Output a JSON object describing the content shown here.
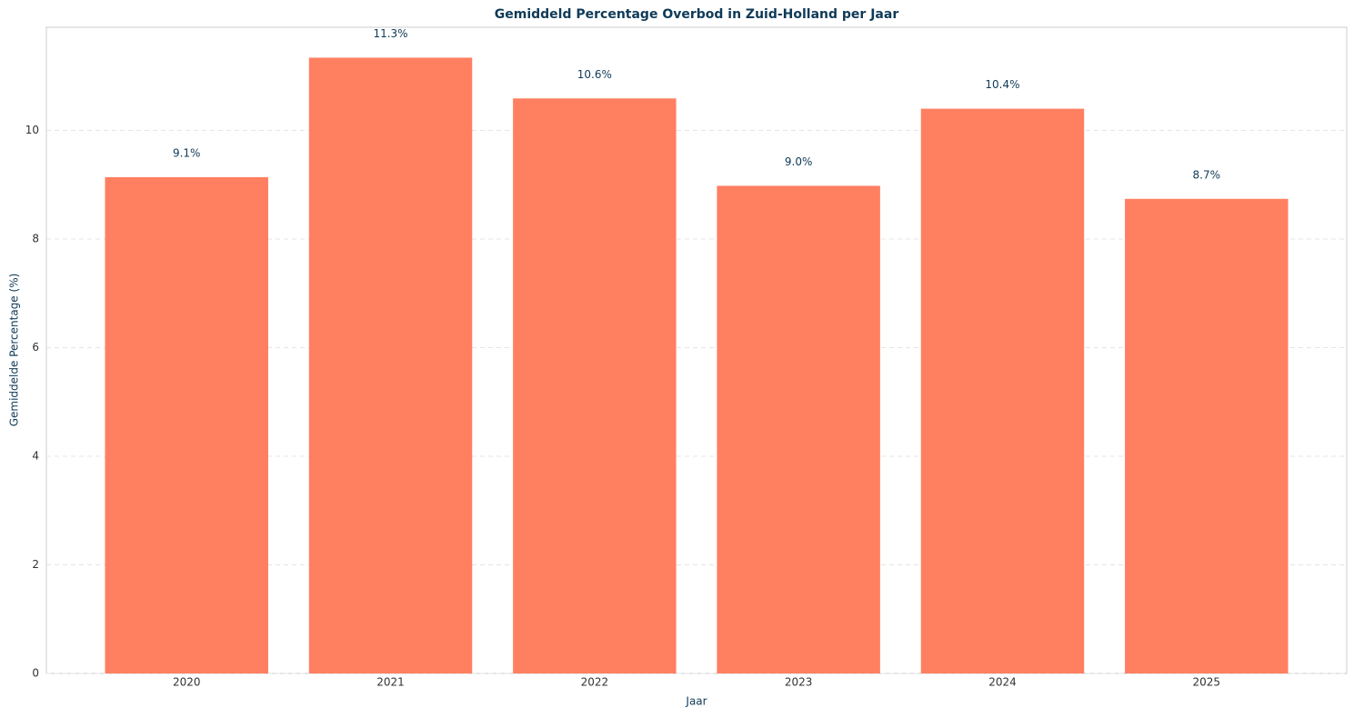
{
  "chart_data": {
    "type": "bar",
    "title": "Gemiddeld Percentage Overbod in Zuid-Holland per Jaar",
    "xlabel": "Jaar",
    "ylabel": "Gemiddelde Percentage (%)",
    "categories": [
      "2020",
      "2021",
      "2022",
      "2023",
      "2024",
      "2025"
    ],
    "values": [
      9.14,
      11.34,
      10.59,
      8.98,
      10.4,
      8.74
    ],
    "value_labels": [
      "9.1%",
      "11.3%",
      "10.6%",
      "9.0%",
      "10.4%",
      "8.7%"
    ],
    "color": "#ff7f61",
    "ylim": [
      0,
      11.9
    ],
    "yticks": [
      0,
      2,
      4,
      6,
      8,
      10
    ],
    "grid": true
  }
}
